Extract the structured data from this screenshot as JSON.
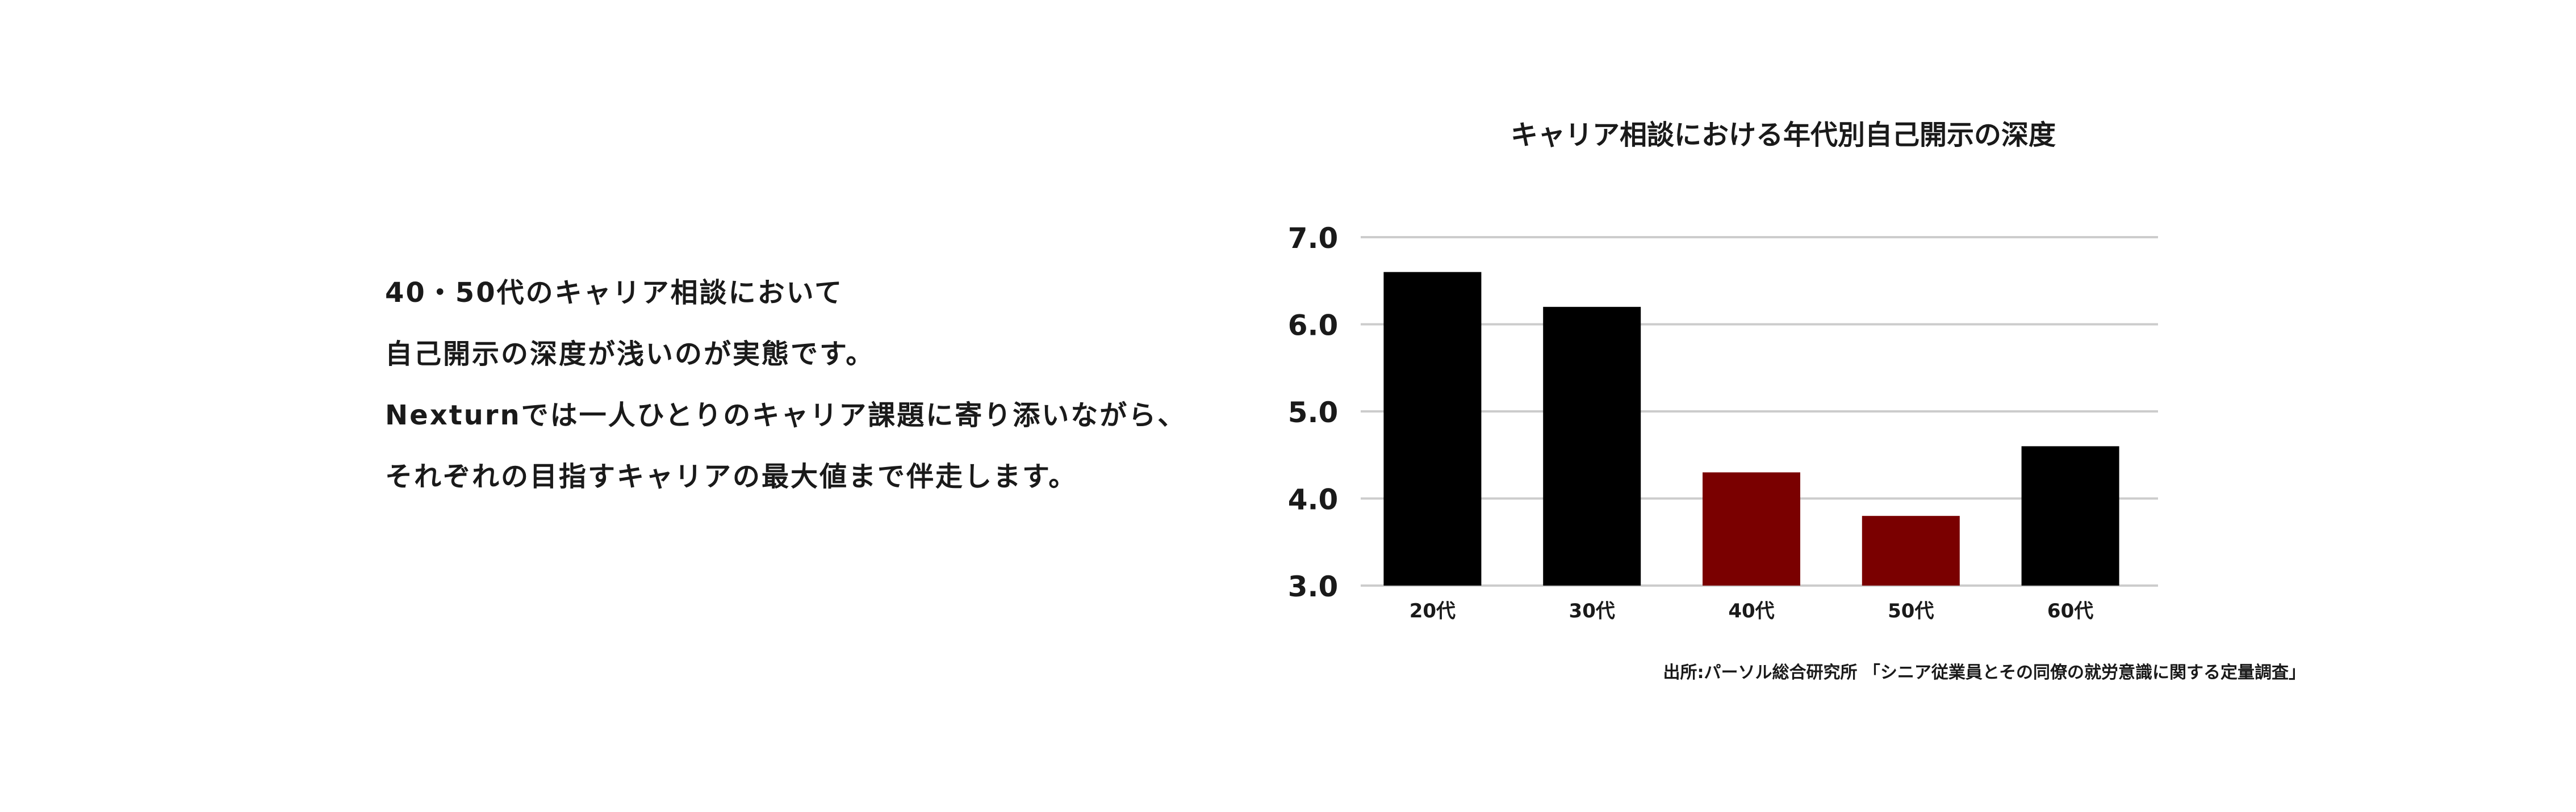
{
  "description": {
    "lines": [
      "40・50代のキャリア相談において",
      "自己開示の深度が浅いのが実態です。",
      "Nexturnでは一人ひとりのキャリア課題に寄り添いながら、",
      "それぞれの目指すキャリアの最大値まで伴走します。"
    ]
  },
  "chart_data": {
    "type": "bar",
    "title": "キャリア相談における年代別自己開示の深度",
    "categories": [
      "20代",
      "30代",
      "40代",
      "50代",
      "60代"
    ],
    "values": [
      6.6,
      6.2,
      4.3,
      3.8,
      4.6
    ],
    "highlight": [
      false,
      false,
      true,
      true,
      false
    ],
    "colors": {
      "normal": "#000000",
      "highlight": "#7a0000",
      "grid": "#cccccc"
    },
    "ylim": [
      3.0,
      7.0
    ],
    "yticks": [
      "3.0",
      "4.0",
      "5.0",
      "6.0",
      "7.0"
    ],
    "xlabel": "",
    "ylabel": "",
    "grid": true,
    "source": "出所:パーソル総合研究所 「シニア従業員とその同僚の就労意識に関する定量調査」"
  }
}
